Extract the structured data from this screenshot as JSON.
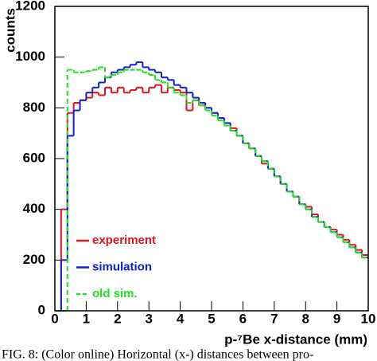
{
  "chart_data": {
    "type": "histogram",
    "ylabel": "counts",
    "xlabel": "p-⁷Be x-distance (mm)",
    "caption": "FIG. 8: (Color online) Horizontal (x-) distances between pro-",
    "bins": [
      0,
      0.2,
      0.4,
      0.6,
      0.8,
      1.0,
      1.2,
      1.4,
      1.6,
      1.8,
      2.0,
      2.2,
      2.4,
      2.6,
      2.8,
      3.0,
      3.2,
      3.4,
      3.6,
      3.8,
      4.0,
      4.2,
      4.4,
      4.6,
      4.8,
      5.0,
      5.2,
      5.4,
      5.6,
      5.8,
      6.0,
      6.2,
      6.4,
      6.6,
      6.8,
      7.0,
      7.2,
      7.4,
      7.6,
      7.8,
      8.0,
      8.2,
      8.4,
      8.6,
      8.8,
      9.0,
      9.2,
      9.4,
      9.6,
      9.8,
      10.0
    ],
    "series": [
      {
        "name": "experiment",
        "color": "#e0141e",
        "dash": false,
        "values": [
          0,
          400,
          780,
          820,
          830,
          840,
          860,
          850,
          880,
          860,
          880,
          860,
          870,
          880,
          860,
          880,
          890,
          860,
          880,
          870,
          860,
          790,
          830,
          810,
          800,
          780,
          760,
          740,
          720,
          690,
          660,
          640,
          610,
          580,
          560,
          530,
          500,
          470,
          450,
          420,
          410,
          380,
          350,
          330,
          320,
          300,
          280,
          260,
          240,
          220
        ]
      },
      {
        "name": "simulation",
        "color": "#1020d0",
        "dash": false,
        "values": [
          0,
          200,
          690,
          790,
          830,
          860,
          880,
          900,
          920,
          940,
          950,
          960,
          970,
          980,
          960,
          950,
          940,
          920,
          910,
          890,
          880,
          860,
          840,
          820,
          800,
          780,
          760,
          740,
          710,
          690,
          660,
          640,
          610,
          590,
          560,
          530,
          500,
          470,
          450,
          420,
          400,
          370,
          350,
          330,
          310,
          290,
          270,
          250,
          230,
          210
        ]
      },
      {
        "name": "old sim.",
        "color": "#22e022",
        "dash": true,
        "values": [
          0,
          0,
          950,
          940,
          940,
          945,
          950,
          960,
          920,
          930,
          940,
          950,
          950,
          950,
          940,
          930,
          910,
          900,
          880,
          860,
          850,
          820,
          830,
          810,
          790,
          770,
          750,
          730,
          710,
          690,
          660,
          640,
          610,
          590,
          560,
          530,
          500,
          470,
          450,
          420,
          400,
          370,
          350,
          330,
          310,
          290,
          270,
          250,
          230,
          210
        ]
      }
    ],
    "xlim": [
      0,
      10
    ],
    "xticks": [
      0,
      1,
      2,
      3,
      4,
      5,
      6,
      7,
      8,
      9,
      10
    ],
    "ylim": [
      0,
      1200
    ],
    "yticks": [
      0,
      200,
      400,
      600,
      800,
      1000,
      1200
    ],
    "legend": "lower-left"
  }
}
